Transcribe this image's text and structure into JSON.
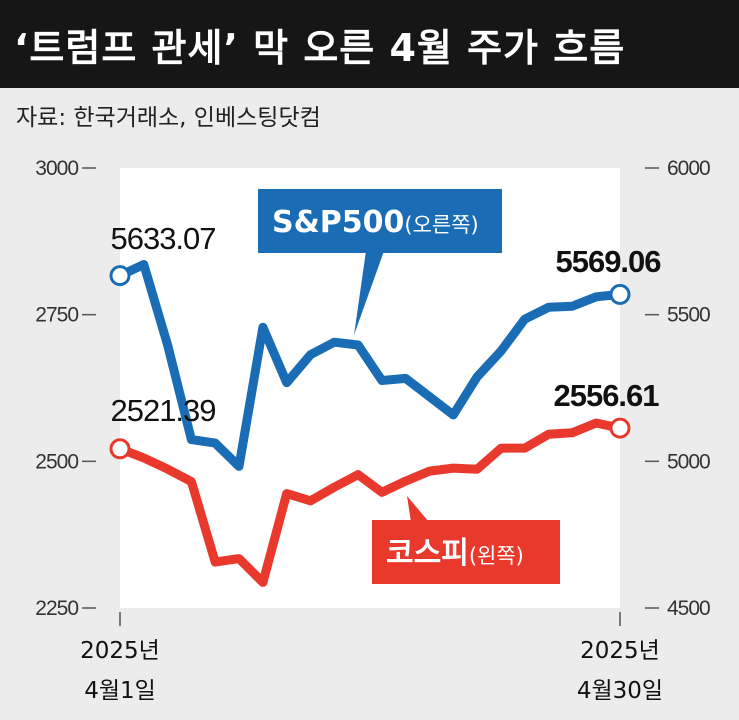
{
  "title": "‘트럼프 관세’ 막 오른 4월 주가 흐름",
  "source": "자료: 한국거래소, 인베스팅닷컴",
  "colors": {
    "sp500": "#1a6db5",
    "kospi": "#e8392c",
    "plot_bg": "#ffffff",
    "page_bg": "#ececec"
  },
  "chart_data": {
    "type": "line",
    "x": [
      "4/1",
      "4/2",
      "4/3",
      "4/4",
      "4/7",
      "4/8",
      "4/9",
      "4/10",
      "4/11",
      "4/14",
      "4/15",
      "4/16",
      "4/17",
      "4/18",
      "4/21",
      "4/22",
      "4/23",
      "4/24",
      "4/25",
      "4/28",
      "4/29",
      "4/30"
    ],
    "x_labels": [
      {
        "index": 0,
        "line1": "2025년",
        "line2": "4월1일"
      },
      {
        "index": 21,
        "line1": "2025년",
        "line2": "4월30일"
      }
    ],
    "left_axis": {
      "ticks": [
        "3000",
        "2750",
        "2500",
        "2250"
      ],
      "ylim": [
        2250,
        3000
      ]
    },
    "right_axis": {
      "ticks": [
        "6000",
        "5500",
        "5000",
        "4500"
      ],
      "ylim": [
        4500,
        6000
      ]
    },
    "series": [
      {
        "name": "S&P500",
        "axis_note": "(오른쪽)",
        "axis": "right",
        "values": [
          5633.07,
          5670.97,
          5396.52,
          5074.08,
          5062.25,
          4982.77,
          5456.9,
          5268.05,
          5363.36,
          5405.97,
          5396.63,
          5275.7,
          5282.7,
          null,
          5158.2,
          5287.76,
          5375.86,
          5484.77,
          5525.21,
          5528.75,
          5560.83,
          5569.06
        ],
        "start_label": "5633.07",
        "end_label": "5569.06"
      },
      {
        "name": "코스피",
        "axis_note": "(왼쪽)",
        "axis": "left",
        "values": [
          2521.39,
          2505.86,
          2486.7,
          2465.42,
          2328.2,
          2334.23,
          2293.7,
          2445.06,
          2432.72,
          2455.89,
          2477.41,
          2447.27,
          2466.34,
          2483.42,
          2488.42,
          2486.64,
          2522.33,
          2522.56,
          2546.3,
          2548.86,
          2565.42,
          2556.61
        ],
        "start_label": "2521.39",
        "end_label": "2556.61"
      }
    ]
  }
}
